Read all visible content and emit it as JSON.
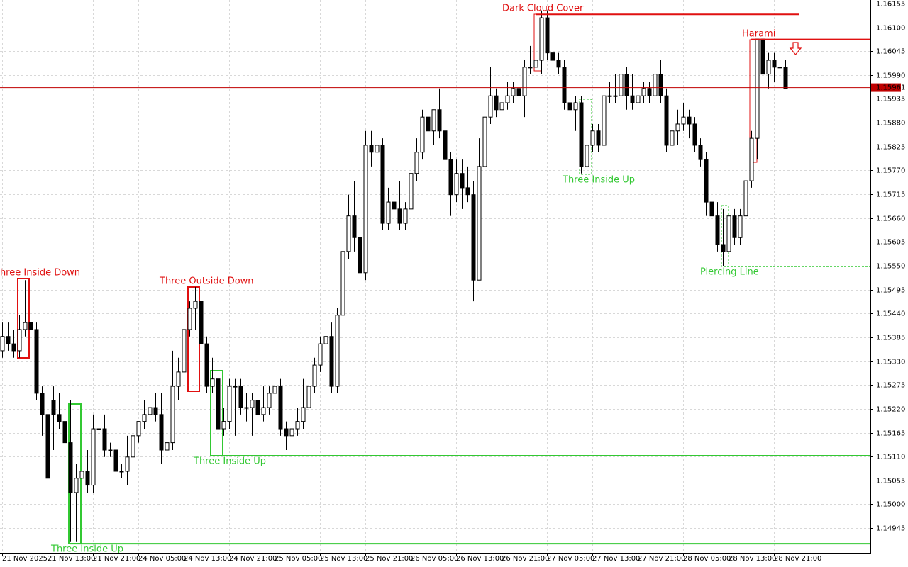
{
  "chart_data": {
    "type": "candlestick",
    "categories": [
      "21 Nov 2025",
      null,
      null,
      null,
      null,
      null,
      null,
      null,
      "21 Nov 13:00",
      null,
      null,
      null,
      null,
      null,
      null,
      null,
      "21 Nov 21:00",
      null,
      null,
      null,
      null,
      null,
      null,
      null,
      "24 Nov 05:00",
      null,
      null,
      null,
      null,
      null,
      null,
      null,
      "24 Nov 13:00",
      null,
      null,
      null,
      null,
      null,
      null,
      null,
      "24 Nov 21:00",
      null,
      null,
      null,
      null,
      null,
      null,
      null,
      "25 Nov 05:00",
      null,
      null,
      null,
      null,
      null,
      null,
      null,
      "25 Nov 13:00",
      null,
      null,
      null,
      null,
      null,
      null,
      null,
      "25 Nov 21:00",
      null,
      null,
      null,
      null,
      null,
      null,
      null,
      "26 Nov 05:00",
      null,
      null,
      null,
      null,
      null,
      null,
      null,
      "26 Nov 13:00",
      null,
      null,
      null,
      null,
      null,
      null,
      null,
      "26 Nov 21:00",
      null,
      null,
      null,
      null,
      null,
      null,
      null,
      "27 Nov 05:00",
      null,
      null,
      null,
      null,
      null,
      null,
      null,
      "27 Nov 13:00",
      null,
      null,
      null,
      null,
      null,
      null,
      null,
      "27 Nov 21:00",
      null,
      null,
      null,
      null,
      null,
      null,
      null,
      "28 Nov 05:00",
      null,
      null,
      null,
      null,
      null,
      null,
      null,
      "28 Nov 13:00",
      null,
      null,
      null,
      null,
      null,
      null,
      null,
      "28 Nov 21:00",
      null,
      null
    ],
    "open": [
      1.15354,
      1.15387,
      1.1537,
      1.15354,
      1.15403,
      1.15419,
      1.15403,
      1.15256,
      1.15207,
      1.1524,
      1.15207,
      1.15191,
      1.15142,
      1.15027,
      1.1506,
      1.15076,
      1.15044,
      1.15174,
      1.15174,
      1.15125,
      1.15125,
      1.15076,
      1.15076,
      1.15109,
      1.15158,
      1.15191,
      1.15207,
      1.15223,
      1.15207,
      1.15125,
      1.15142,
      1.15272,
      1.15305,
      1.15403,
      1.15452,
      1.15468,
      1.1537,
      1.15272,
      1.15289,
      1.15174,
      1.15191,
      1.15272,
      1.15272,
      1.15223,
      1.15223,
      1.1524,
      1.15207,
      1.15223,
      1.15256,
      1.15272,
      1.15174,
      1.15158,
      1.15174,
      1.15191,
      1.15223,
      1.15272,
      1.15321,
      1.1537,
      1.15387,
      1.15272,
      1.15436,
      1.15583,
      1.15665,
      1.15615,
      1.15534,
      1.15828,
      1.15812,
      1.15828,
      1.15648,
      1.15697,
      1.15681,
      1.15648,
      1.15681,
      1.15763,
      1.15812,
      1.15893,
      1.15861,
      1.1591,
      1.15861,
      1.15795,
      1.15714,
      1.15763,
      1.1573,
      1.15714,
      1.15517,
      1.15779,
      1.15893,
      1.15942,
      1.1591,
      1.15926,
      1.15942,
      1.15959,
      1.15942,
      1.16008,
      1.16008,
      1.16024,
      1.16122,
      1.16041,
      1.16024,
      1.16008,
      1.15926,
      1.1591,
      1.15926,
      1.15779,
      1.15828,
      1.15861,
      1.15828,
      1.15942,
      1.15942,
      1.15942,
      1.15992,
      1.15942,
      1.15926,
      1.15942,
      1.15959,
      1.15942,
      1.15992,
      1.15942,
      1.15828,
      1.15861,
      1.15877,
      1.15893,
      1.15877,
      1.15828,
      1.15795,
      1.15697,
      1.15665,
      1.15599,
      1.15583,
      1.15665,
      1.15615,
      1.15665,
      1.15746,
      1.15844,
      1.16073,
      1.15992,
      1.16024,
      1.16008,
      1.16008
    ],
    "high": [
      1.15419,
      1.15419,
      1.15403,
      1.15436,
      1.15517,
      1.15485,
      1.15419,
      1.15272,
      1.15256,
      1.15272,
      1.15256,
      1.15223,
      1.1524,
      1.15093,
      1.15158,
      1.15125,
      1.15207,
      1.15191,
      1.15207,
      1.15142,
      1.15158,
      1.15093,
      1.15158,
      1.15191,
      1.15191,
      1.1524,
      1.15272,
      1.15256,
      1.15256,
      1.15207,
      1.15354,
      1.15338,
      1.15419,
      1.15468,
      1.15501,
      1.15501,
      1.15387,
      1.15338,
      1.15305,
      1.15223,
      1.15289,
      1.15289,
      1.15289,
      1.15256,
      1.15256,
      1.15256,
      1.15272,
      1.15272,
      1.15305,
      1.15289,
      1.15191,
      1.15191,
      1.15223,
      1.15289,
      1.15305,
      1.15338,
      1.15387,
      1.15403,
      1.15419,
      1.15452,
      1.15632,
      1.15714,
      1.15746,
      1.15632,
      1.15861,
      1.15861,
      1.15844,
      1.15844,
      1.1573,
      1.15714,
      1.15746,
      1.15697,
      1.15795,
      1.15844,
      1.1591,
      1.1591,
      1.1591,
      1.15959,
      1.1591,
      1.15812,
      1.15795,
      1.15795,
      1.15779,
      1.15746,
      1.15844,
      1.1591,
      1.16008,
      1.15959,
      1.15959,
      1.15975,
      1.15975,
      1.15975,
      1.16024,
      1.16057,
      1.1609,
      1.16139,
      1.16139,
      1.16073,
      1.16041,
      1.16024,
      1.15942,
      1.15942,
      1.15942,
      1.15844,
      1.15877,
      1.15877,
      1.15959,
      1.15975,
      1.15992,
      1.16008,
      1.16008,
      1.15992,
      1.15959,
      1.15975,
      1.15975,
      1.16008,
      1.16024,
      1.15959,
      1.15893,
      1.1591,
      1.15926,
      1.1591,
      1.15893,
      1.15844,
      1.15812,
      1.15714,
      1.15697,
      1.15681,
      1.15697,
      1.15681,
      1.15681,
      1.15779,
      1.15861,
      1.16073,
      1.16073,
      1.16041,
      1.16041,
      1.16041,
      1.16024
    ],
    "low": [
      1.15338,
      1.15354,
      1.15338,
      1.15338,
      1.15387,
      1.15354,
      1.1524,
      1.15158,
      1.14962,
      1.15125,
      1.15174,
      1.1506,
      1.14913,
      1.14913,
      1.15011,
      1.15027,
      1.15027,
      1.15158,
      1.15109,
      1.15109,
      1.1506,
      1.1506,
      1.15044,
      1.15093,
      1.15142,
      1.15174,
      1.15191,
      1.15191,
      1.15093,
      1.15109,
      1.15125,
      1.1524,
      1.15289,
      1.15387,
      1.15403,
      1.15354,
      1.15256,
      1.15256,
      1.15158,
      1.15158,
      1.15174,
      1.15158,
      1.15207,
      1.15191,
      1.15158,
      1.15174,
      1.15191,
      1.15207,
      1.15223,
      1.15158,
      1.15125,
      1.15109,
      1.15158,
      1.15174,
      1.15207,
      1.15256,
      1.15305,
      1.15338,
      1.15256,
      1.15256,
      1.15419,
      1.15566,
      1.15583,
      1.15501,
      1.15517,
      1.15779,
      1.15583,
      1.15632,
      1.15632,
      1.15665,
      1.15632,
      1.15632,
      1.15665,
      1.15746,
      1.15795,
      1.15828,
      1.15828,
      1.15844,
      1.15779,
      1.15665,
      1.15697,
      1.15681,
      1.15697,
      1.15468,
      1.15517,
      1.15763,
      1.15877,
      1.15893,
      1.15893,
      1.1591,
      1.15926,
      1.15926,
      1.15893,
      1.15992,
      1.15992,
      1.15992,
      1.16024,
      1.15992,
      1.15992,
      1.1591,
      1.15877,
      1.15861,
      1.15763,
      1.15763,
      1.15812,
      1.15812,
      1.15812,
      1.15926,
      1.15926,
      1.1591,
      1.1591,
      1.1591,
      1.1591,
      1.15926,
      1.15926,
      1.15926,
      1.15926,
      1.15812,
      1.15812,
      1.15828,
      1.15861,
      1.15844,
      1.15812,
      1.15779,
      1.15665,
      1.15648,
      1.15583,
      1.1555,
      1.15566,
      1.15599,
      1.15599,
      1.15648,
      1.1573,
      1.15795,
      1.15926,
      1.15959,
      1.15975,
      1.15992,
      1.15959
    ],
    "close": [
      1.15387,
      1.1537,
      1.15354,
      1.15403,
      1.15419,
      1.15403,
      1.15256,
      1.15207,
      1.1506,
      1.15207,
      1.15191,
      1.15142,
      1.15027,
      1.1506,
      1.15076,
      1.15044,
      1.15174,
      1.15174,
      1.15125,
      1.15125,
      1.15076,
      1.15076,
      1.15109,
      1.15158,
      1.15191,
      1.15207,
      1.15223,
      1.15207,
      1.15125,
      1.15142,
      1.15272,
      1.15305,
      1.15403,
      1.15452,
      1.15468,
      1.1537,
      1.15272,
      1.15289,
      1.15174,
      1.15191,
      1.15272,
      1.15272,
      1.15223,
      1.15223,
      1.1524,
      1.15207,
      1.15223,
      1.15256,
      1.15272,
      1.15174,
      1.15158,
      1.15174,
      1.15191,
      1.15223,
      1.15272,
      1.15321,
      1.1537,
      1.15387,
      1.15272,
      1.15436,
      1.15583,
      1.15665,
      1.15615,
      1.15534,
      1.15828,
      1.15812,
      1.15828,
      1.15648,
      1.15697,
      1.15681,
      1.15648,
      1.15681,
      1.15763,
      1.15812,
      1.15893,
      1.15861,
      1.1591,
      1.15861,
      1.15795,
      1.15714,
      1.15763,
      1.1573,
      1.15714,
      1.15517,
      1.15779,
      1.15893,
      1.15942,
      1.1591,
      1.15926,
      1.15942,
      1.15959,
      1.15942,
      1.16008,
      1.16008,
      1.16024,
      1.16122,
      1.16041,
      1.16024,
      1.16008,
      1.15926,
      1.1591,
      1.15926,
      1.15779,
      1.15828,
      1.15861,
      1.15828,
      1.15942,
      1.15942,
      1.15942,
      1.15992,
      1.15942,
      1.15926,
      1.15942,
      1.15959,
      1.15942,
      1.15992,
      1.15942,
      1.15828,
      1.15861,
      1.15877,
      1.15893,
      1.15877,
      1.15828,
      1.15795,
      1.15697,
      1.15665,
      1.15599,
      1.15583,
      1.15665,
      1.15615,
      1.15665,
      1.15746,
      1.15844,
      1.16073,
      1.15992,
      1.16024,
      1.16008,
      1.16008,
      1.15959
    ],
    "up_color": "#ffffff",
    "down_color": "#000000",
    "outline_color": "#000000",
    "ylim": [
      1.14888,
      1.16163
    ],
    "yticks": [
      1.16155,
      {
        "value": 1.161,
        "label": "1.16100"
      },
      1.16045,
      {
        "value": 1.1599,
        "label": "1.15990"
      },
      1.15935,
      {
        "value": 1.1588,
        "label": "1.15880"
      },
      1.15825,
      {
        "value": 1.1577,
        "label": "1.15770"
      },
      1.15715,
      {
        "value": 1.1566,
        "label": "1.15660"
      },
      1.15605,
      {
        "value": 1.1555,
        "label": "1.15550"
      },
      1.15495,
      {
        "value": 1.1544,
        "label": "1.15440"
      },
      1.15385,
      {
        "value": 1.1533,
        "label": "1.15330"
      },
      1.15275,
      {
        "value": 1.1522,
        "label": "1.15220"
      },
      1.15165,
      {
        "value": 1.1511,
        "label": "1.15110"
      },
      1.15055,
      {
        "value": 1.15,
        "label": "1.15000"
      },
      1.14945
    ],
    "grid": true,
    "current_price": 1.15961,
    "current_price_color": "#c00000",
    "annotations": [
      {
        "text": "Three Inside Down",
        "color": "#e01010"
      },
      {
        "text": "Three Outside Down",
        "color": "#e01010"
      },
      {
        "text": "Three Inside Up",
        "color": "#32c832",
        "level": 1.15112
      },
      {
        "text": "Three Inside Up",
        "color": "#32c832",
        "level": 1.14909
      },
      {
        "text": "Dark Cloud Cover",
        "color": "#e01010",
        "level": 1.1613
      },
      {
        "text": "Three Inside Up",
        "color": "#32c832"
      },
      {
        "text": "Harami",
        "color": "#e01010",
        "level": 1.16072
      },
      {
        "text": "Piercing Line",
        "color": "#32c832",
        "level": 1.15548
      }
    ]
  }
}
